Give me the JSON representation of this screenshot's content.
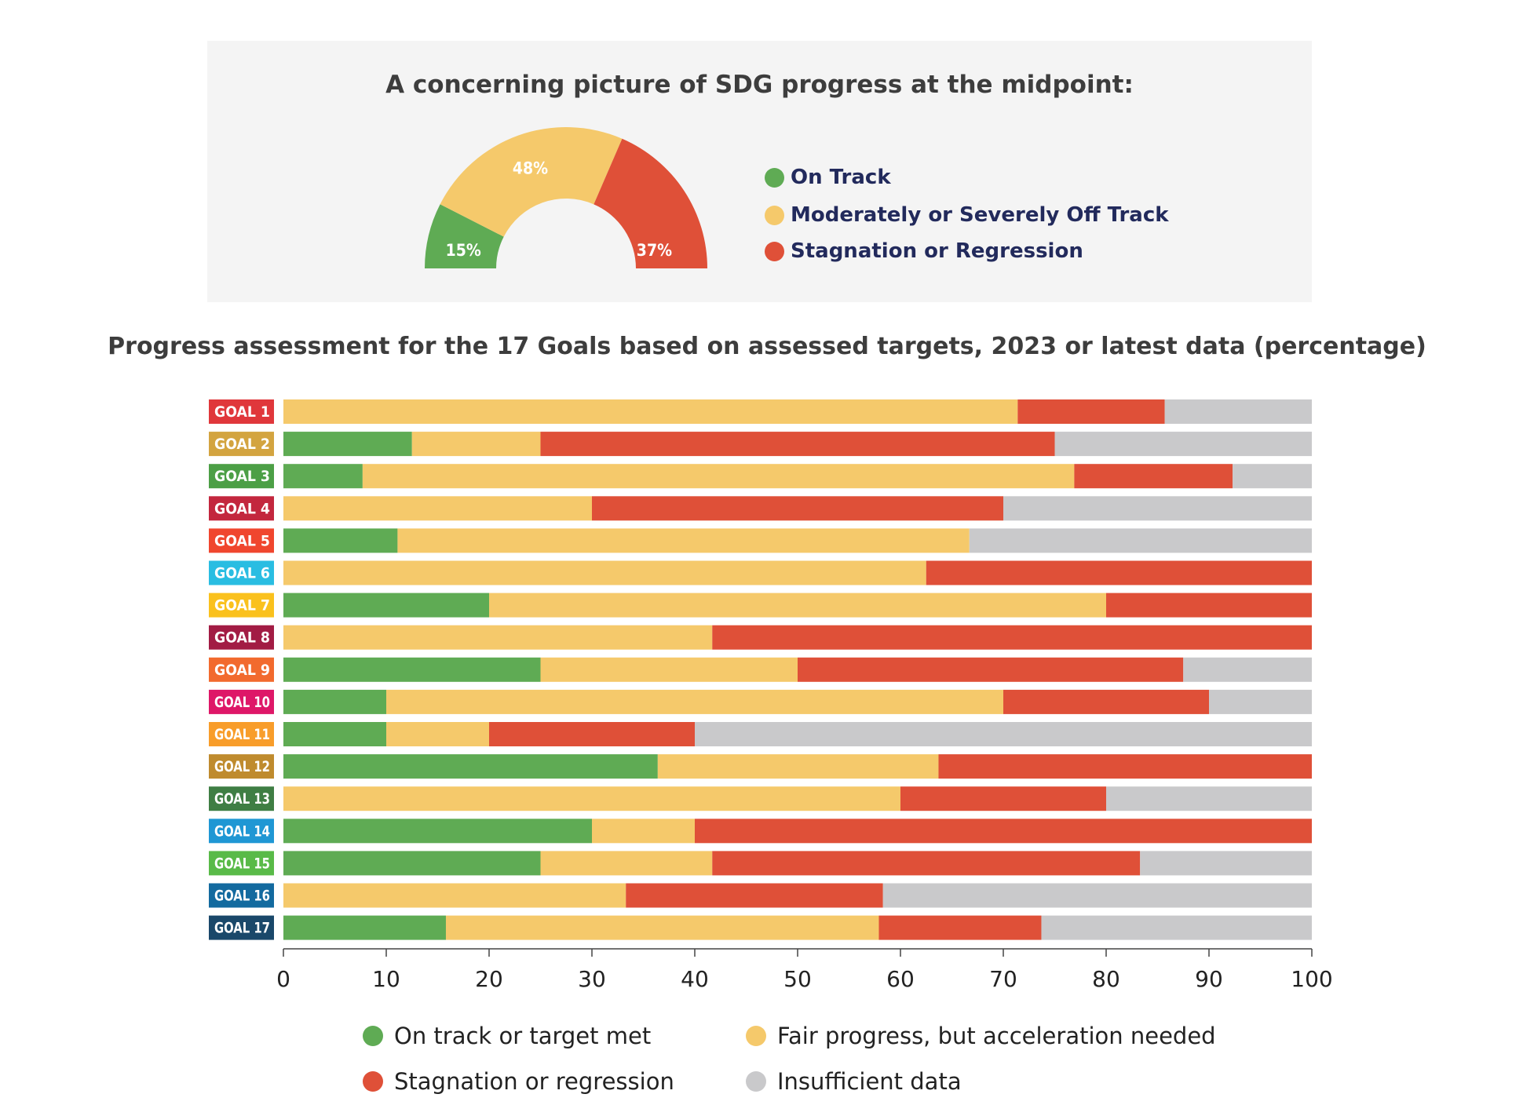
{
  "colors": {
    "green": "#5fab54",
    "yellow": "#f5c96b",
    "red": "#df5038",
    "gray": "#c9c9cb",
    "navy": "#222a5c"
  },
  "gauge": {
    "title": "A concerning picture of SDG progress at the midpoint:",
    "segments": [
      {
        "label": "15%",
        "value": 15,
        "color": "#5fab54"
      },
      {
        "label": "48%",
        "value": 48,
        "color": "#f5c96b"
      },
      {
        "label": "37%",
        "value": 37,
        "color": "#df5038"
      }
    ],
    "legend": [
      {
        "label": "On Track",
        "color": "#5fab54"
      },
      {
        "label": "Moderately or Severely Off Track",
        "color": "#f5c96b"
      },
      {
        "label": "Stagnation or Regression",
        "color": "#df5038"
      }
    ]
  },
  "chart_data": {
    "type": "bar",
    "orientation": "horizontal",
    "stacked": true,
    "title": "Progress assessment for the 17 Goals based on assessed targets, 2023 or latest data (percentage)",
    "xlim": [
      0,
      100
    ],
    "xticks": [
      "0",
      "10",
      "20",
      "30",
      "40",
      "50",
      "60",
      "70",
      "80",
      "90",
      "100"
    ],
    "categories": [
      "GOAL 1",
      "GOAL 2",
      "GOAL 3",
      "GOAL 4",
      "GOAL 5",
      "GOAL 6",
      "GOAL 7",
      "GOAL 8",
      "GOAL 9",
      "GOAL 10",
      "GOAL 11",
      "GOAL 12",
      "GOAL 13",
      "GOAL 14",
      "GOAL 15",
      "GOAL 16",
      "GOAL 17"
    ],
    "category_colors": [
      "#e0373b",
      "#d3a440",
      "#4c9f46",
      "#c3273e",
      "#f0462e",
      "#29bde2",
      "#fac11d",
      "#a21c44",
      "#f26a2e",
      "#de1768",
      "#f89d2a",
      "#bf8b2e",
      "#3f7e44",
      "#1f97d4",
      "#59ba48",
      "#136a9f",
      "#1a486a"
    ],
    "series": [
      {
        "name": "On track or target met",
        "color": "#5fab54",
        "values": [
          0,
          12.5,
          7.7,
          0,
          11.1,
          0,
          20,
          0,
          25,
          10,
          10,
          36.4,
          0,
          30,
          25,
          0,
          15.8
        ]
      },
      {
        "name": "Fair progress, but acceleration needed",
        "color": "#f5c96b",
        "values": [
          71.4,
          12.5,
          69.2,
          30,
          55.6,
          62.5,
          60,
          41.7,
          25,
          60,
          10,
          27.3,
          60,
          10,
          16.7,
          33.3,
          42.1
        ]
      },
      {
        "name": "Stagnation or regression",
        "color": "#df5038",
        "values": [
          14.3,
          50,
          15.4,
          40,
          0,
          37.5,
          20,
          58.3,
          37.5,
          20,
          20,
          36.3,
          20,
          60,
          41.6,
          25,
          15.8
        ]
      },
      {
        "name": "Insufficient data",
        "color": "#c9c9cb",
        "values": [
          14.3,
          25,
          7.7,
          30,
          33.3,
          0,
          0,
          0,
          12.5,
          10,
          60,
          0,
          20,
          0,
          16.7,
          41.7,
          26.3
        ]
      }
    ],
    "legend_position": "bottom"
  }
}
